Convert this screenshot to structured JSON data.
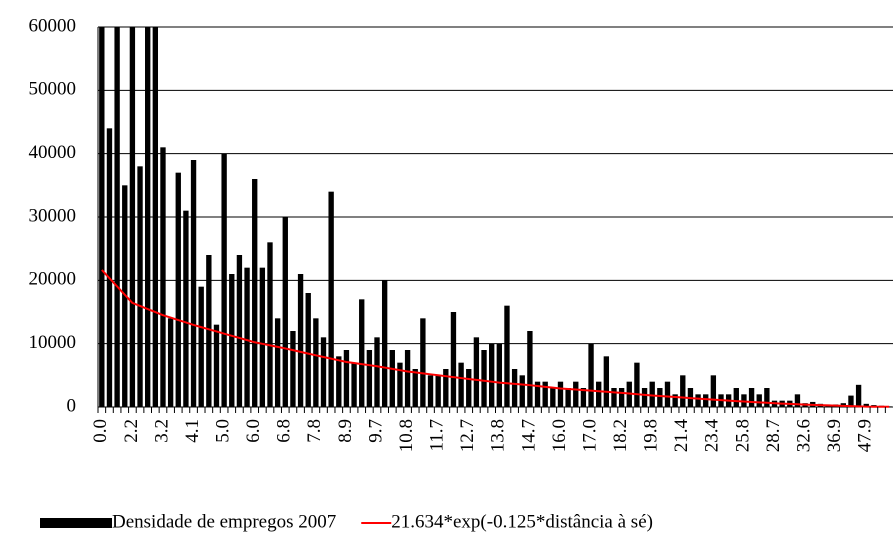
{
  "chart_data": {
    "type": "bar",
    "categories": [
      "0.0",
      null,
      null,
      null,
      "2.2",
      null,
      null,
      null,
      "3.2",
      null,
      null,
      null,
      "4.1",
      null,
      null,
      null,
      "5.0",
      null,
      null,
      null,
      "6.0",
      null,
      null,
      null,
      "6.8",
      null,
      null,
      null,
      "7.8",
      null,
      null,
      null,
      "8.9",
      null,
      null,
      null,
      "9.7",
      null,
      null,
      null,
      "10.8",
      null,
      null,
      null,
      "11.7",
      null,
      null,
      null,
      "12.7",
      null,
      null,
      null,
      "13.8",
      null,
      null,
      null,
      "14.7",
      null,
      null,
      null,
      "16.0",
      null,
      null,
      null,
      "17.0",
      null,
      null,
      null,
      "18.2",
      null,
      null,
      null,
      "19.8",
      null,
      null,
      null,
      "21.4",
      null,
      null,
      null,
      "23.4",
      null,
      null,
      null,
      "25.8",
      null,
      null,
      null,
      "28.7",
      null,
      null,
      null,
      "32.6",
      null,
      null,
      null,
      "36.9",
      null,
      null,
      null,
      "47.9",
      null,
      null,
      null
    ],
    "series": [
      {
        "name": "Densidade de empregos 2007",
        "color": "#000000",
        "type": "bar",
        "values": [
          60000,
          44000,
          60000,
          35000,
          60000,
          38000,
          60000,
          60000,
          41000,
          14000,
          37000,
          31000,
          39000,
          19000,
          24000,
          13000,
          40000,
          21000,
          24000,
          22000,
          36000,
          22000,
          26000,
          14000,
          30000,
          12000,
          21000,
          18000,
          14000,
          11000,
          34000,
          8000,
          9000,
          7000,
          17000,
          9000,
          11000,
          20000,
          9000,
          7000,
          9000,
          6000,
          14000,
          5000,
          5000,
          6000,
          15000,
          7000,
          6000,
          11000,
          9000,
          10000,
          10000,
          16000,
          6000,
          5000,
          12000,
          4000,
          4000,
          3000,
          4000,
          3000,
          4000,
          3000,
          10000,
          4000,
          8000,
          3000,
          3000,
          4000,
          7000,
          3000,
          4000,
          3000,
          4000,
          2000,
          5000,
          3000,
          2000,
          2000,
          5000,
          2000,
          2000,
          3000,
          2000,
          3000,
          2000,
          3000,
          1000,
          1000,
          1000,
          2000,
          600,
          800,
          500,
          400,
          400,
          600,
          1800,
          3500,
          500,
          300,
          200,
          100
        ]
      },
      {
        "name": "21.634*exp(-0.125*distância à sé)",
        "color": "#ff0000",
        "type": "line",
        "values": [
          21634,
          20334,
          19033,
          17733,
          16433,
          15950,
          15468,
          14985,
          14502,
          14116,
          13731,
          13345,
          12959,
          12614,
          12270,
          11925,
          11580,
          11240,
          10900,
          10559,
          10219,
          9976,
          9733,
          9490,
          9247,
          8975,
          8704,
          8432,
          8160,
          7898,
          7636,
          7373,
          7111,
          6942,
          6773,
          6603,
          6434,
          6227,
          6021,
          5814,
          5608,
          5459,
          5310,
          5160,
          5011,
          4864,
          4717,
          4569,
          4422,
          4280,
          4139,
          3997,
          3855,
          3752,
          3650,
          3547,
          3444,
          3315,
          3186,
          3057,
          2928,
          2842,
          2756,
          2670,
          2584,
          2494,
          2404,
          2314,
          2224,
          2123,
          2023,
          1922,
          1821,
          1739,
          1656,
          1574,
          1491,
          1409,
          1326,
          1244,
          1161,
          1086,
          1011,
          936,
          861,
          796,
          730,
          665,
          599,
          541,
          484,
          426,
          368,
          330,
          292,
          253,
          215,
          175,
          135,
          94,
          54,
          48,
          42,
          36
        ]
      }
    ],
    "ylim": [
      0,
      60000
    ],
    "yticks": [
      0,
      10000,
      20000,
      30000,
      40000,
      50000,
      60000
    ],
    "grid": true
  }
}
